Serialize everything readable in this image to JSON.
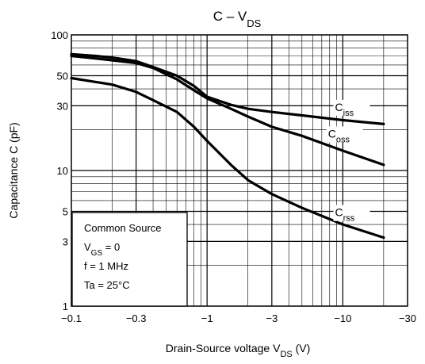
{
  "chart_data": {
    "type": "line",
    "title": {
      "main": "C – V",
      "sub": "DS"
    },
    "xlabel": {
      "main": "Drain-Source voltage   V",
      "sub": "DS",
      "unit": "   (V)"
    },
    "ylabel": "Capacitance   C   (pF)",
    "x_scale": "log",
    "y_scale": "log",
    "xlim": [
      -0.1,
      -30
    ],
    "ylim": [
      1,
      100
    ],
    "grid": true,
    "x_ticks": [
      {
        "value": -0.1,
        "label": "−0.1"
      },
      {
        "value": -0.3,
        "label": "−0.3"
      },
      {
        "value": -1,
        "label": "−1"
      },
      {
        "value": -3,
        "label": "−3"
      },
      {
        "value": -10,
        "label": "−10"
      },
      {
        "value": -30,
        "label": "−30"
      }
    ],
    "y_ticks": [
      {
        "value": 1,
        "label": "1"
      },
      {
        "value": 3,
        "label": "3"
      },
      {
        "value": 5,
        "label": "5"
      },
      {
        "value": 10,
        "label": "10"
      },
      {
        "value": 30,
        "label": "30"
      },
      {
        "value": 50,
        "label": "50"
      },
      {
        "value": 100,
        "label": "100"
      }
    ],
    "series": [
      {
        "name": "Ciss",
        "label_main": "C",
        "label_sub": "iss",
        "x": [
          -0.1,
          -0.15,
          -0.2,
          -0.3,
          -0.4,
          -0.6,
          -0.8,
          -1,
          -1.5,
          -2,
          -3,
          -5,
          -10,
          -20
        ],
        "y": [
          72,
          70,
          68,
          64,
          58,
          50,
          42,
          35,
          30.5,
          28.5,
          27,
          25.5,
          23.5,
          22
        ]
      },
      {
        "name": "Coss",
        "label_main": "C",
        "label_sub": "oss",
        "x": [
          -0.1,
          -0.15,
          -0.2,
          -0.3,
          -0.4,
          -0.6,
          -0.8,
          -1,
          -1.5,
          -2,
          -3,
          -5,
          -10,
          -20
        ],
        "y": [
          70,
          67,
          65,
          62,
          57,
          47,
          39,
          34,
          28.5,
          25,
          21,
          18,
          14,
          11
        ]
      },
      {
        "name": "Crss",
        "label_main": "C",
        "label_sub": "rss",
        "x": [
          -0.1,
          -0.15,
          -0.2,
          -0.3,
          -0.4,
          -0.6,
          -0.8,
          -1,
          -1.5,
          -2,
          -3,
          -5,
          -10,
          -20
        ],
        "y": [
          48,
          45,
          43,
          38,
          33,
          27,
          21,
          16.5,
          11,
          8.5,
          6.7,
          5.3,
          4,
          3.2
        ]
      }
    ],
    "annotation": {
      "lines": [
        {
          "main": "Common Source",
          "sub": "",
          "rest": ""
        },
        {
          "main": "V",
          "sub": "GS",
          "rest": " = 0"
        },
        {
          "main": "f = 1 MHz",
          "sub": "",
          "rest": ""
        },
        {
          "main": "Ta = 25°C",
          "sub": "",
          "rest": ""
        }
      ]
    }
  }
}
